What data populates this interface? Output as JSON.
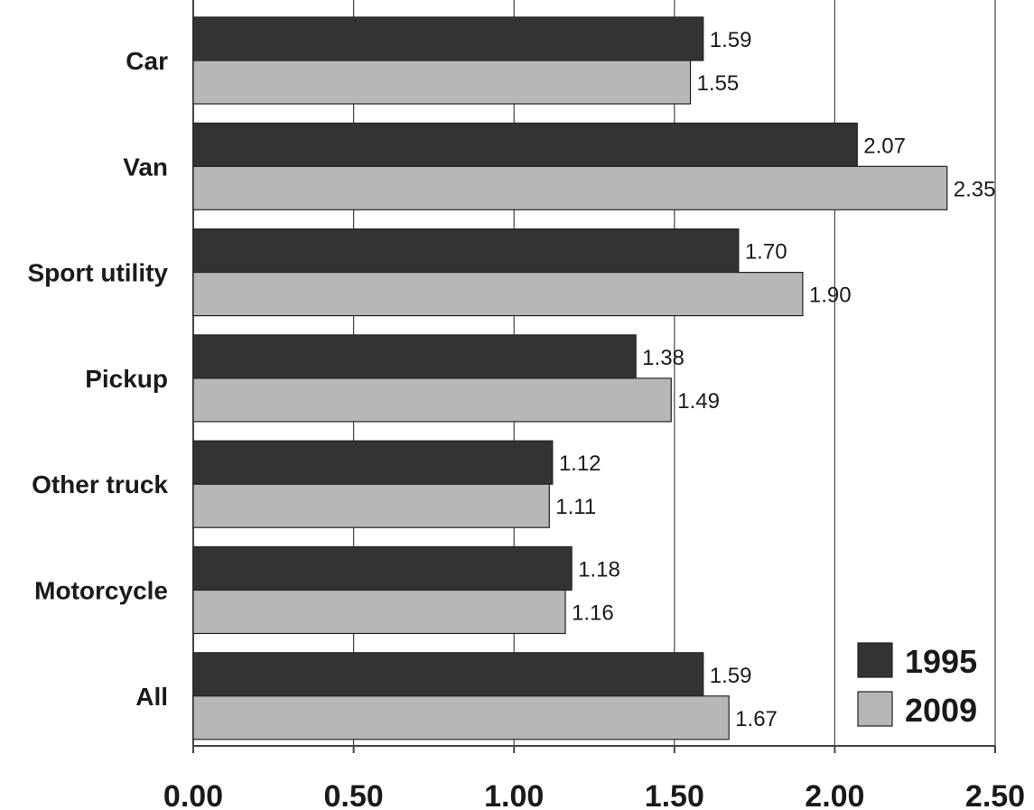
{
  "chart_data": {
    "type": "bar",
    "orientation": "horizontal",
    "categories": [
      "Car",
      "Van",
      "Sport utility",
      "Pickup",
      "Other truck",
      "Motorcycle",
      "All"
    ],
    "series": [
      {
        "name": "1995",
        "color": "#333333",
        "values": [
          1.59,
          2.07,
          1.7,
          1.38,
          1.12,
          1.18,
          1.59
        ]
      },
      {
        "name": "2009",
        "color": "#b7b7b7",
        "values": [
          1.55,
          2.35,
          1.9,
          1.49,
          1.11,
          1.16,
          1.67
        ]
      }
    ],
    "data_labels": [
      [
        "1.59",
        "2.07",
        "1.70",
        "1.38",
        "1.12",
        "1.18",
        "1.59"
      ],
      [
        "1.55",
        "2.35",
        "1.90",
        "1.49",
        "1.11",
        "1.16",
        "1.67"
      ]
    ],
    "xticks": [
      0,
      0.5,
      1.0,
      1.5,
      2.0,
      2.5
    ],
    "xtick_labels": [
      "0.00",
      "0.50",
      "1.00",
      "1.50",
      "2.00",
      "2.50"
    ],
    "xlim": [
      0,
      2.5
    ],
    "title": "",
    "xlabel": "",
    "ylabel": "",
    "grid": "vertical",
    "legend_position": "bottom-right",
    "background": "#ffffff",
    "grid_color": "#444444",
    "text_color": "#1a1a1a"
  }
}
